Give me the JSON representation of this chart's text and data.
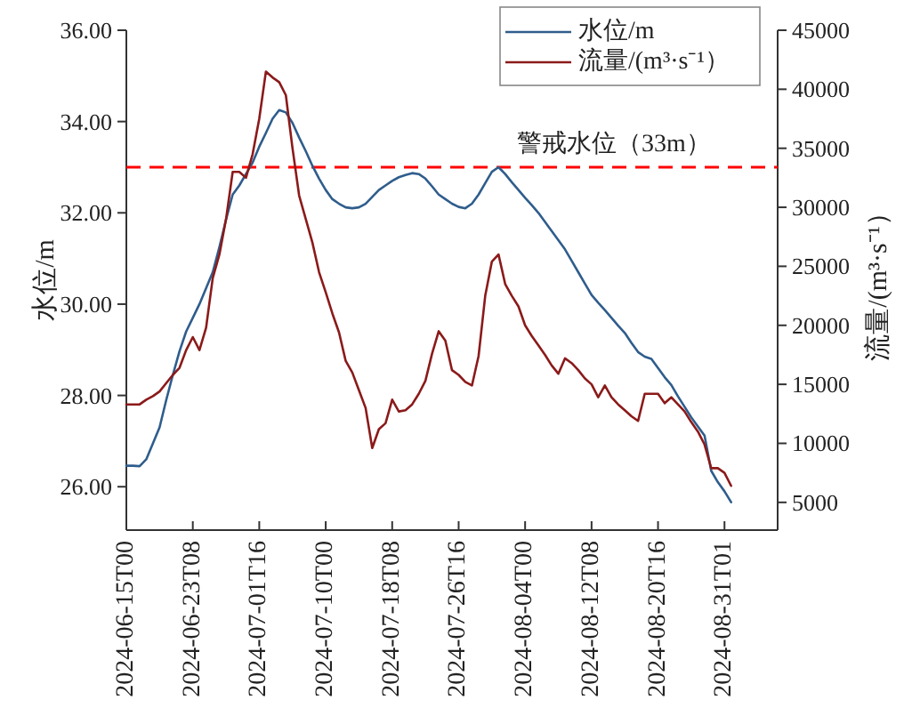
{
  "chart_data": {
    "type": "line",
    "ylabel": "水位/m",
    "y2label": "流量/(m³·s⁻¹）",
    "categories": [
      "2024-06-15T00",
      null,
      null,
      null,
      null,
      null,
      null,
      null,
      null,
      null,
      "2024-06-23T08",
      null,
      null,
      null,
      null,
      null,
      null,
      null,
      null,
      null,
      "2024-07-01T16",
      null,
      null,
      null,
      null,
      null,
      null,
      null,
      null,
      null,
      "2024-07-10T00",
      null,
      null,
      null,
      null,
      null,
      null,
      null,
      null,
      null,
      "2024-07-18T08",
      null,
      null,
      null,
      null,
      null,
      null,
      null,
      null,
      null,
      "2024-07-26T16",
      null,
      null,
      null,
      null,
      null,
      null,
      null,
      null,
      null,
      "2024-08-04T00",
      null,
      null,
      null,
      null,
      null,
      null,
      null,
      null,
      null,
      "2024-08-12T08",
      null,
      null,
      null,
      null,
      null,
      null,
      null,
      null,
      null,
      "2024-08-20T16",
      null,
      null,
      null,
      null,
      null,
      null,
      null,
      null,
      null,
      "2024-08-31T01",
      null,
      null,
      null,
      null,
      null,
      null,
      null,
      null
    ],
    "ylim": [
      25.05,
      36
    ],
    "yticks": [
      {
        "value": 26,
        "label": "26.00"
      },
      {
        "value": 28,
        "label": "28.00"
      },
      {
        "value": 30,
        "label": "30.00"
      },
      {
        "value": 32,
        "label": "32.00"
      },
      {
        "value": 34,
        "label": "34.00"
      },
      {
        "value": 36,
        "label": "36.00"
      }
    ],
    "y2lim": [
      2650,
      45000
    ],
    "y2ticks": [
      5000,
      10000,
      15000,
      20000,
      25000,
      30000,
      35000,
      40000,
      45000
    ],
    "legend": "top right",
    "grid": false,
    "line_style": "solid",
    "ref_lines": [
      {
        "axis": "y",
        "value": 33,
        "label": "警戒水位（33m）",
        "color": "#ff0000",
        "line_style": "dashed"
      }
    ],
    "series": [
      {
        "name": "水位/m",
        "color": "#2f5d8c",
        "values": [
          26.46,
          26.46,
          26.45,
          26.6,
          26.95,
          27.3,
          27.9,
          28.45,
          28.97,
          29.4,
          29.7,
          30.0,
          30.35,
          30.7,
          31.25,
          31.85,
          32.4,
          32.6,
          32.85,
          33.1,
          33.45,
          33.75,
          34.06,
          34.25,
          34.2,
          33.97,
          33.65,
          33.35,
          33.03,
          32.75,
          32.5,
          32.3,
          32.2,
          32.12,
          32.1,
          32.12,
          32.2,
          32.35,
          32.5,
          32.6,
          32.7,
          32.78,
          32.83,
          32.87,
          32.85,
          32.75,
          32.58,
          32.4,
          32.3,
          32.2,
          32.13,
          32.1,
          32.2,
          32.4,
          32.65,
          32.9,
          33.0,
          32.85,
          32.67,
          32.5,
          32.33,
          32.17,
          32.0,
          31.8,
          31.6,
          31.4,
          31.2,
          30.95,
          30.7,
          30.45,
          30.2,
          30.03,
          29.87,
          29.7,
          29.53,
          29.37,
          29.15,
          28.95,
          28.85,
          28.8,
          28.6,
          28.4,
          28.23,
          27.98,
          27.75,
          27.52,
          27.32,
          27.12,
          26.35,
          26.1,
          25.9,
          25.66,
          null,
          null,
          null,
          null,
          null,
          null,
          null
        ]
      },
      {
        "name": "流量/(m³·s⁻¹）",
        "color": "#8b1a1a",
        "axis": "y2",
        "values": [
          13300,
          13300,
          13300,
          13700,
          14000,
          14400,
          15100,
          15800,
          16400,
          17900,
          19000,
          17900,
          19800,
          24000,
          26000,
          29000,
          33000,
          33000,
          32500,
          34500,
          37500,
          41500,
          41000,
          40600,
          39500,
          35000,
          31000,
          29000,
          27000,
          24500,
          22800,
          21000,
          19400,
          17000,
          16000,
          14500,
          13000,
          9600,
          11200,
          11700,
          13700,
          12700,
          12800,
          13300,
          14200,
          15300,
          17600,
          19500,
          18700,
          16200,
          15800,
          15200,
          14900,
          17400,
          22500,
          25400,
          26000,
          23500,
          22500,
          21600,
          20000,
          19100,
          18300,
          17500,
          16600,
          15900,
          17200,
          16800,
          16200,
          15500,
          15000,
          13900,
          14900,
          13900,
          13300,
          12800,
          12300,
          11900,
          14200,
          14200,
          14200,
          13400,
          13900,
          13300,
          12700,
          11800,
          11000,
          9900,
          7900,
          7900,
          7500,
          6400,
          null,
          null,
          null,
          null,
          null,
          null,
          null
        ]
      }
    ]
  }
}
